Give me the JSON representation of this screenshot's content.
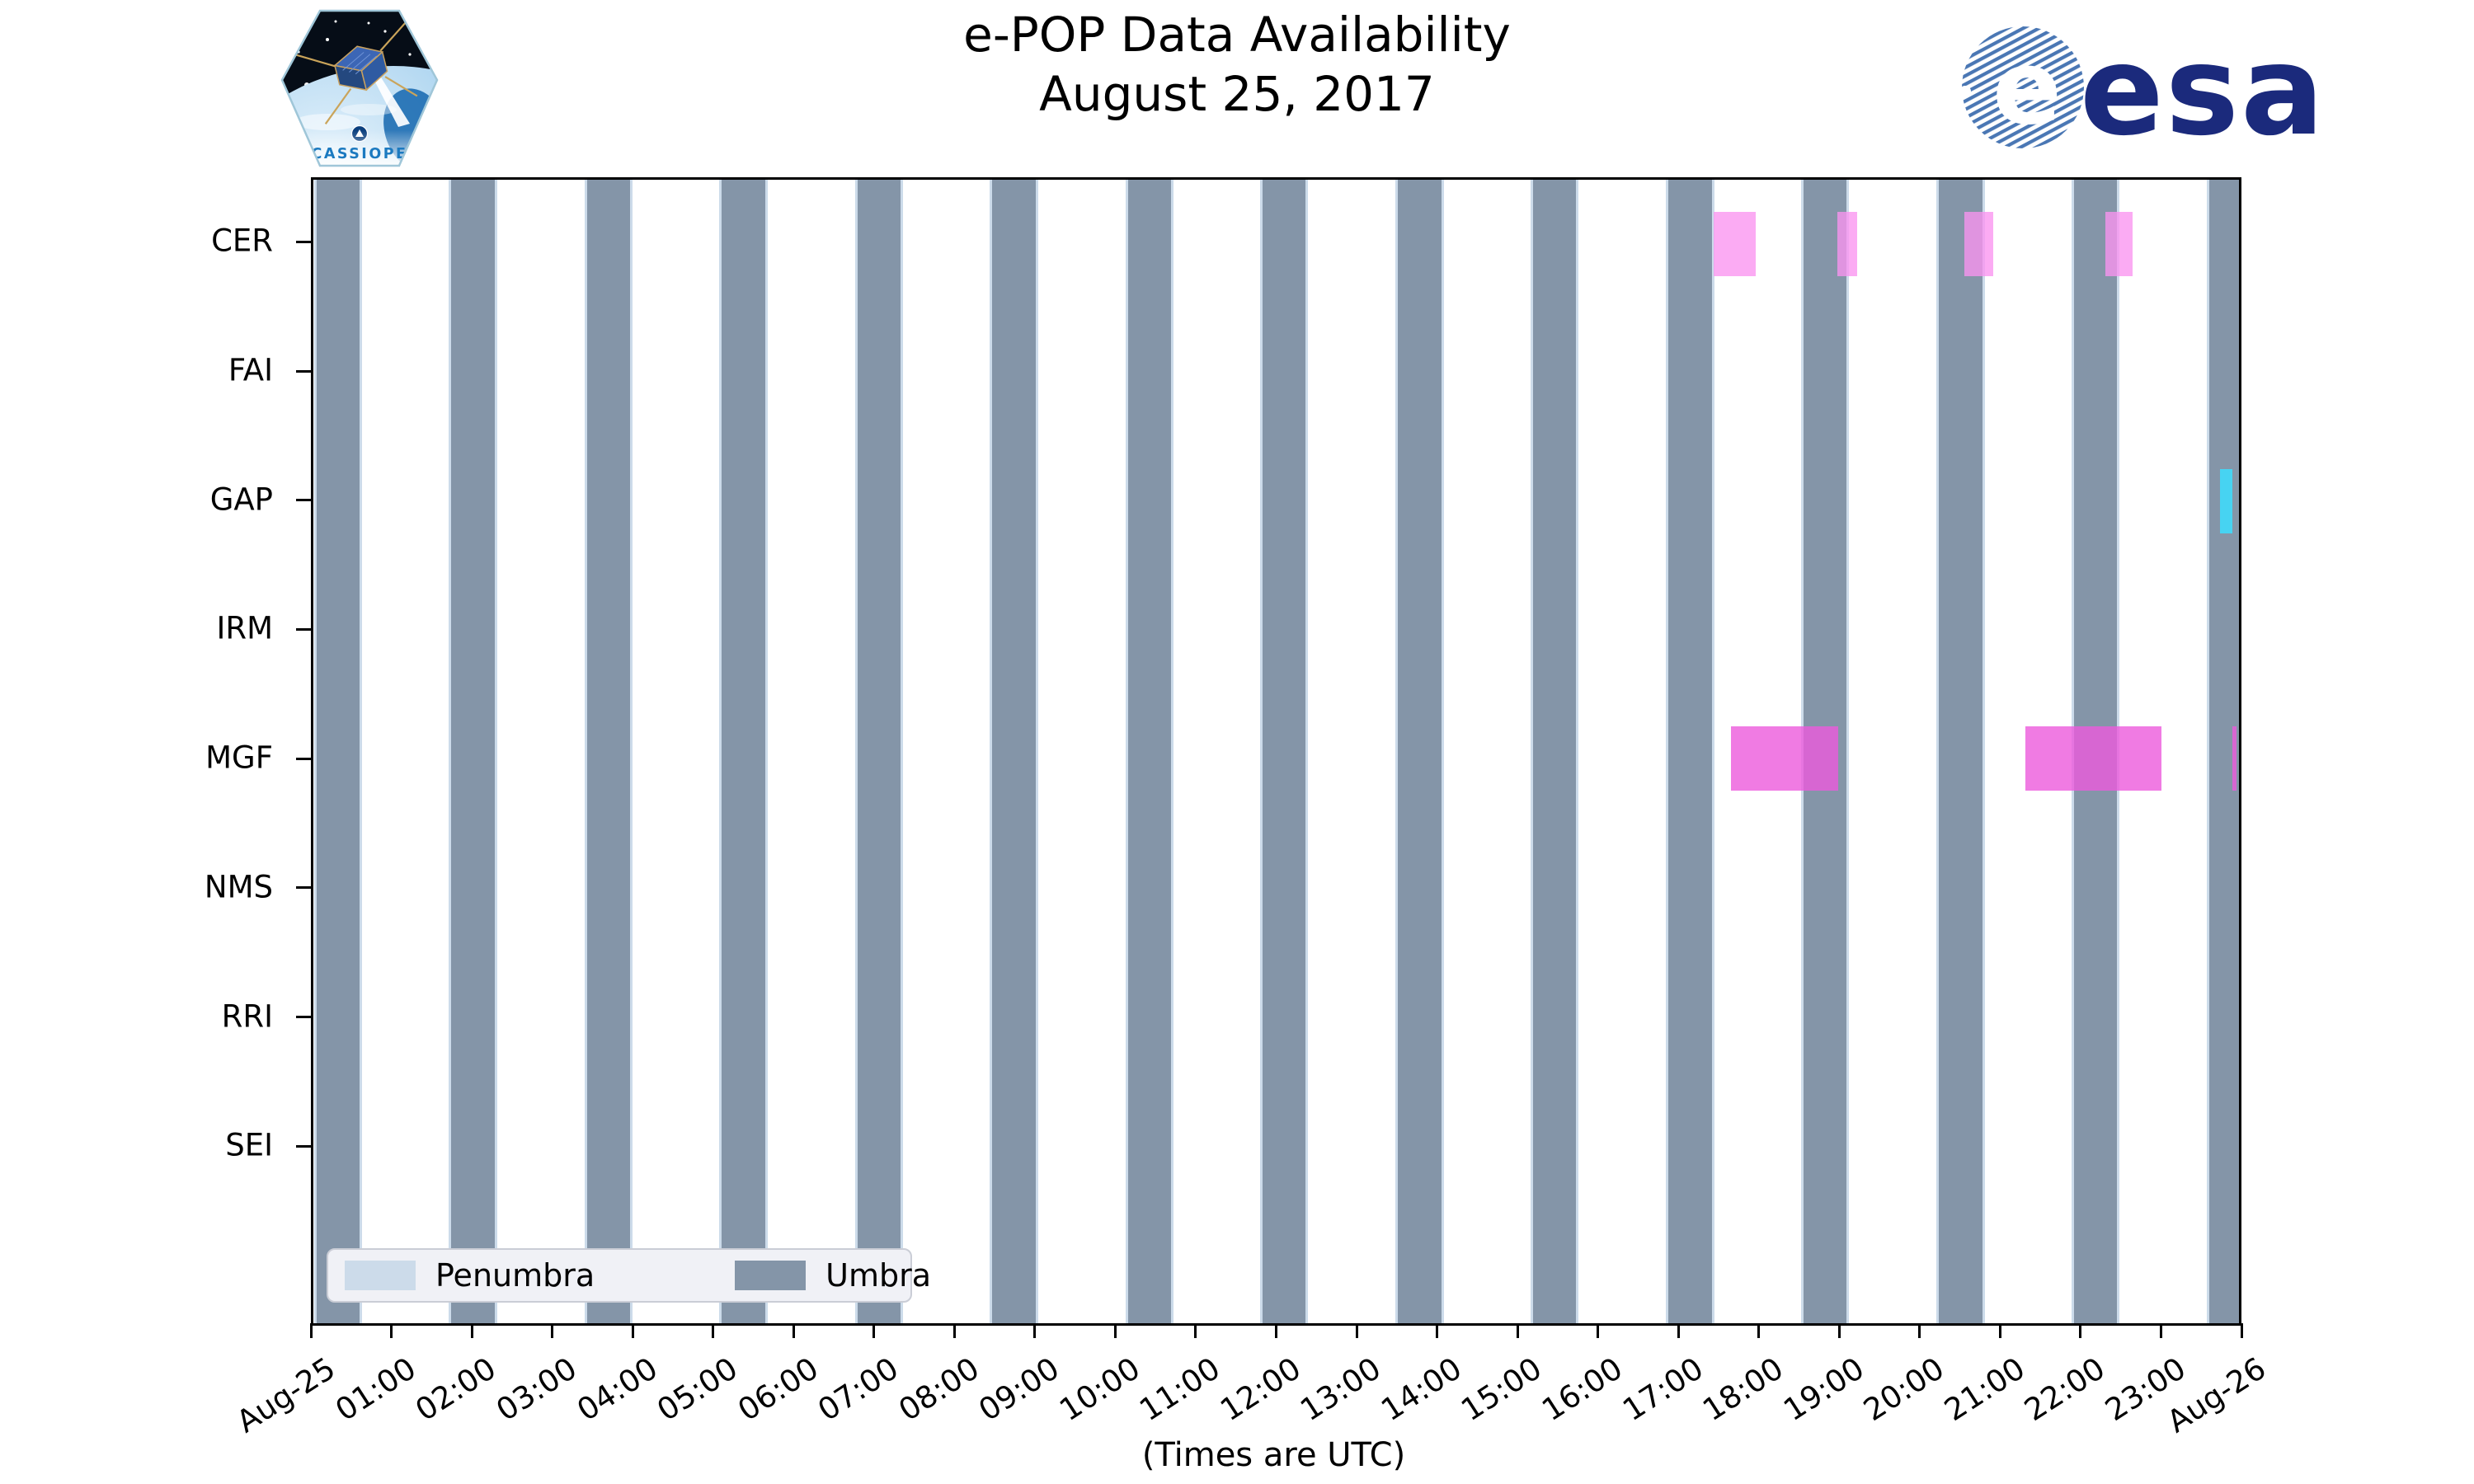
{
  "branding": {
    "cassiope_patch_text": "CASSIOPE",
    "esa_wordmark": "esa",
    "esa_globe_letter": "e"
  },
  "chart_data": {
    "type": "timeline",
    "title": "e-POP Data Availability",
    "subtitle": "August 25, 2017",
    "xlabel": "(Times are UTC)",
    "xlim_hours": [
      0,
      24
    ],
    "x_tick_labels": [
      "Aug-25",
      "01:00",
      "02:00",
      "03:00",
      "04:00",
      "05:00",
      "06:00",
      "07:00",
      "08:00",
      "09:00",
      "10:00",
      "11:00",
      "12:00",
      "13:00",
      "14:00",
      "15:00",
      "16:00",
      "17:00",
      "18:00",
      "19:00",
      "20:00",
      "21:00",
      "22:00",
      "23:00",
      "Aug-26"
    ],
    "instruments": [
      "CER",
      "FAI",
      "GAP",
      "IRM",
      "MGF",
      "NMS",
      "RRI",
      "SEI"
    ],
    "eclipse_bands": {
      "umbra_color": "#8495a8",
      "penumbra_color": "#ccdbea",
      "penumbra_edge_hours": 0.03,
      "umbra_intervals_hours": [
        [
          0.04,
          0.58
        ],
        [
          1.72,
          2.26
        ],
        [
          3.41,
          3.95
        ],
        [
          5.09,
          5.63
        ],
        [
          6.78,
          7.32
        ],
        [
          8.46,
          9.0
        ],
        [
          10.15,
          10.69
        ],
        [
          11.83,
          12.37
        ],
        [
          13.52,
          14.06
        ],
        [
          15.2,
          15.74
        ],
        [
          16.89,
          17.43
        ],
        [
          18.57,
          19.11
        ],
        [
          20.26,
          20.8
        ],
        [
          21.94,
          22.48
        ],
        [
          23.63,
          24.0
        ]
      ]
    },
    "availability": [
      {
        "instrument": "CER",
        "color": "rgba(250,148,240,0.78)",
        "intervals_hours": [
          [
            17.45,
            17.98
          ],
          [
            18.99,
            19.24
          ],
          [
            20.58,
            20.94
          ],
          [
            22.33,
            22.67
          ]
        ]
      },
      {
        "instrument": "GAP",
        "color": "rgba(60,222,255,0.85)",
        "intervals_hours": [
          [
            23.76,
            23.92
          ]
        ]
      },
      {
        "instrument": "MGF",
        "color": "rgba(236,90,220,0.80)",
        "intervals_hours": [
          [
            17.67,
            19.0
          ],
          [
            21.34,
            23.03
          ],
          [
            23.92,
            23.97
          ]
        ]
      }
    ],
    "legend": [
      {
        "label": "Penumbra",
        "color": "#ccdbea"
      },
      {
        "label": "Umbra",
        "color": "#8495a8"
      }
    ]
  }
}
